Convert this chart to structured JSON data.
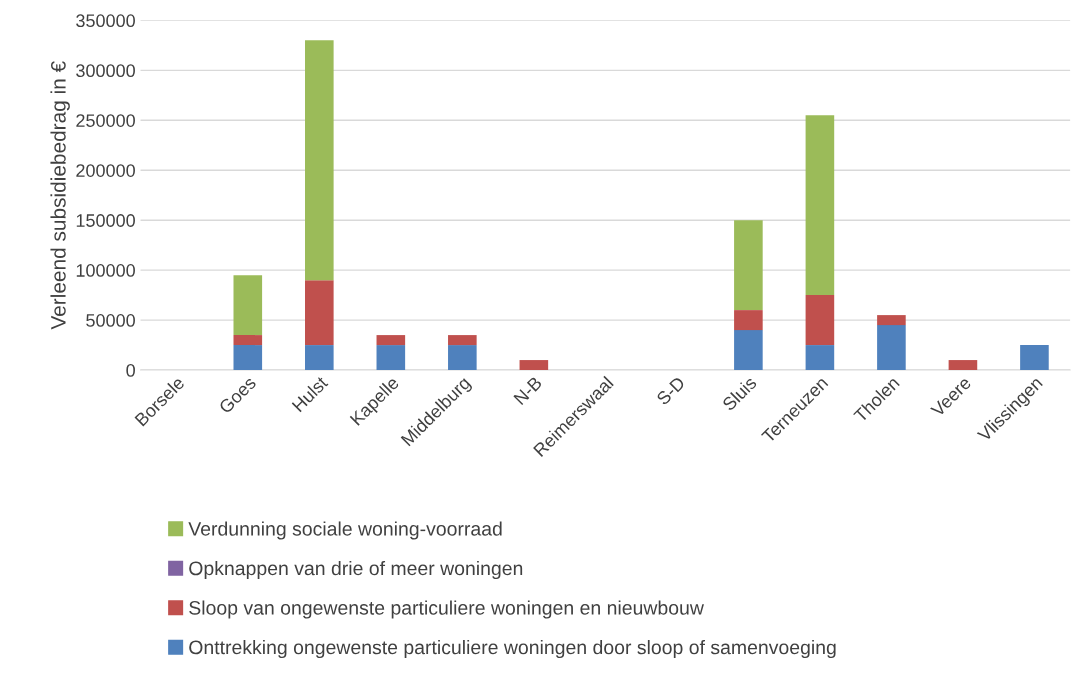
{
  "chart_data": {
    "type": "bar",
    "stacked": true,
    "ylabel": "Verleend subsidiebedrag in €",
    "categories": [
      "Borsele",
      "Goes",
      "Hulst",
      "Kapelle",
      "Middelburg",
      "N-B",
      "Reimerswaal",
      "S-D",
      "Sluis",
      "Terneuzen",
      "Tholen",
      "Veere",
      "Vlissingen"
    ],
    "series": [
      {
        "name": "Onttrekking ongewenste particuliere woningen door sloop of samenvoeging",
        "color": "#4f81bd",
        "values": [
          0,
          25000,
          25000,
          25000,
          25000,
          0,
          0,
          0,
          40000,
          25000,
          45000,
          0,
          25000
        ]
      },
      {
        "name": "Sloop van ongewenste particuliere woningen en nieuwbouw",
        "color": "#c0504d",
        "values": [
          0,
          10000,
          65000,
          10000,
          10000,
          10000,
          0,
          0,
          20000,
          50000,
          10000,
          10000,
          0
        ]
      },
      {
        "name": "Opknappen van drie of meer woningen",
        "color": "#8064a2",
        "values": [
          0,
          0,
          0,
          0,
          0,
          0,
          0,
          0,
          0,
          0,
          0,
          0,
          0
        ]
      },
      {
        "name": "Verdunning sociale woning-voorraad",
        "color": "#9bbb59",
        "values": [
          0,
          60000,
          240000,
          0,
          0,
          0,
          0,
          0,
          90000,
          180000,
          0,
          0,
          0
        ]
      }
    ],
    "ylim": [
      0,
      350000
    ],
    "yticks": [
      0,
      50000,
      100000,
      150000,
      200000,
      250000,
      300000,
      350000
    ],
    "grid": "y",
    "legend": "bottom"
  }
}
